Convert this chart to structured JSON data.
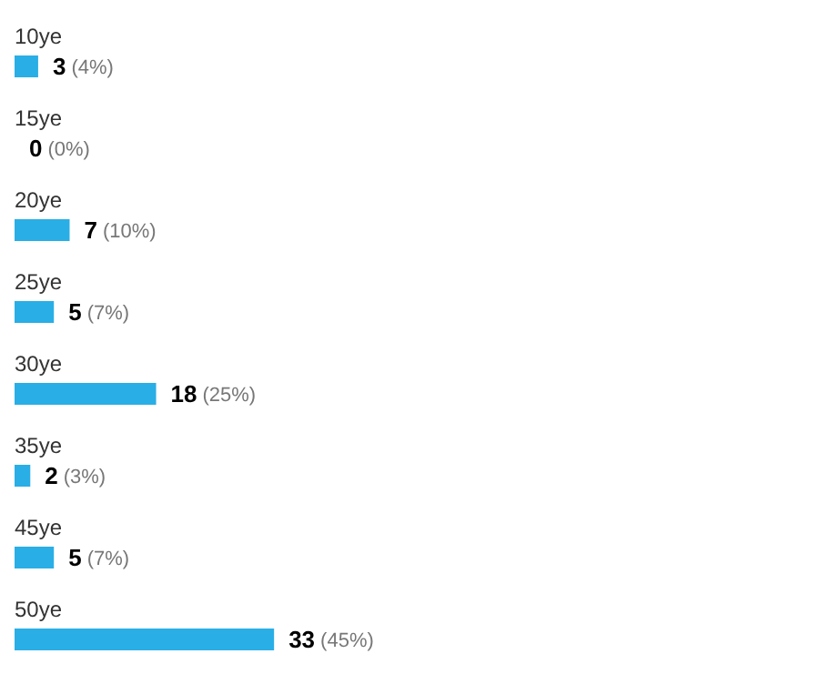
{
  "chart_data": {
    "type": "bar",
    "orientation": "horizontal",
    "categories": [
      "10ye",
      "15ye",
      "20ye",
      "25ye",
      "30ye",
      "35ye",
      "45ye",
      "50ye"
    ],
    "values": [
      3,
      0,
      7,
      5,
      18,
      2,
      5,
      33
    ],
    "color": "#29aee6",
    "data_labels": true,
    "legend": false,
    "annotations": [
      {
        "text": "(4%)",
        "x": 3,
        "y": "10ye"
      },
      {
        "text": "(0%)",
        "x": 0,
        "y": "15ye"
      },
      {
        "text": "(10%)",
        "x": 7,
        "y": "20ye"
      },
      {
        "text": "(7%)",
        "x": 5,
        "y": "25ye"
      },
      {
        "text": "(25%)",
        "x": 18,
        "y": "30ye"
      },
      {
        "text": "(3%)",
        "x": 2,
        "y": "35ye"
      },
      {
        "text": "(7%)",
        "x": 5,
        "y": "45ye"
      },
      {
        "text": "(45%)",
        "x": 33,
        "y": "50ye"
      }
    ]
  }
}
